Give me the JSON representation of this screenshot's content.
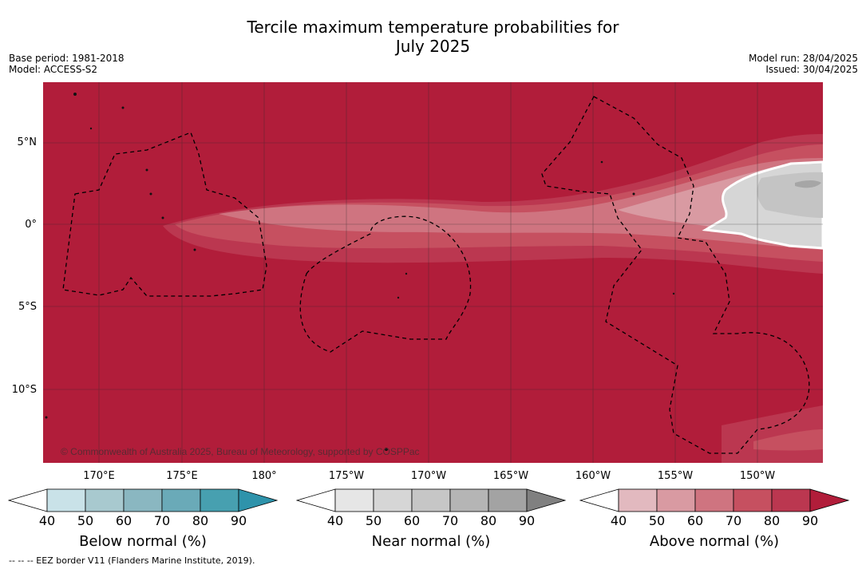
{
  "title_line1": "Tercile maximum temperature probabilities for",
  "title_line2": "July 2025",
  "base_period": "Base period: 1981-2018",
  "model": "Model: ACCESS-S2",
  "model_run": "Model run: 28/04/2025",
  "issued": "Issued: 30/04/2025",
  "map": {
    "lat_labels": [
      "5°N",
      "0°",
      "5°S",
      "10°S"
    ],
    "lon_labels": [
      "170°E",
      "175°E",
      "180°",
      "175°W",
      "170°W",
      "165°W",
      "160°W",
      "155°W",
      "150°W"
    ],
    "copyright": "© Commonwealth of Australia 2025, Bureau of Meteorology, supported by COSPPac",
    "colors": {
      "ocean_above_90": "#b11d3a",
      "above_80": "#bb3750",
      "above_70": "#c65060",
      "above_60": "#cf7480",
      "above_50": "#d99aa2",
      "near_normal": "#d6d6d6",
      "near_normal_60": "#c4c4c4",
      "near_normal_80": "#a6a6a6",
      "grid": "#333333",
      "eez_border": "#000000"
    }
  },
  "colorbars": [
    {
      "title": "Below normal (%)",
      "ticks": [
        "40",
        "50",
        "60",
        "70",
        "80",
        "90"
      ],
      "colors": [
        "#c9e2e8",
        "#a8c9cf",
        "#8ab7c1",
        "#6aaab8",
        "#47a0b0",
        "#2e93ab"
      ]
    },
    {
      "title": "Near normal (%)",
      "ticks": [
        "40",
        "50",
        "60",
        "70",
        "80",
        "90"
      ],
      "colors": [
        "#e6e6e6",
        "#d6d6d6",
        "#c6c6c6",
        "#b5b5b5",
        "#a3a3a3",
        "#808080"
      ]
    },
    {
      "title": "Above normal (%)",
      "ticks": [
        "40",
        "50",
        "60",
        "70",
        "80",
        "90"
      ],
      "colors": [
        "#e2b9bf",
        "#d99aa2",
        "#cf7480",
        "#c65060",
        "#bb3750",
        "#b11d3a"
      ]
    }
  ],
  "footnote": "--  --  -- EEZ border V11 (Flanders Marine Institute, 2019)."
}
